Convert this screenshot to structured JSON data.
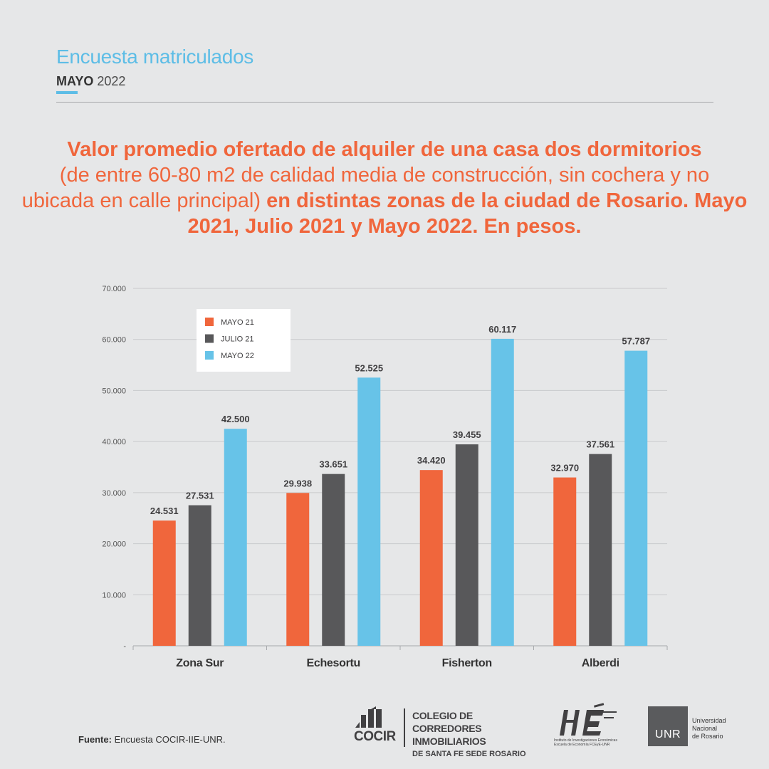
{
  "header": {
    "title": "Encuesta matriculados",
    "date_bold": "MAYO",
    "date_rest": "2022"
  },
  "headline": {
    "part1": "Valor promedio ofertado de alquiler de una casa dos dormitorios",
    "part2": "(de entre 60-80 m2 de calidad media de construcción, sin cochera y no ubicada en calle principal)",
    "part3": "en distintas zonas de la ciudad de Rosario. Mayo 2021, Julio 2021 y Mayo 2022. En pesos."
  },
  "chart_data": {
    "type": "bar",
    "categories": [
      "Zona Sur",
      "Echesortu",
      "Fisherton",
      "Alberdi"
    ],
    "series": [
      {
        "name": "MAYO 21",
        "color": "#f0663c",
        "values": [
          24531,
          29938,
          34420,
          32970
        ],
        "labels": [
          "24.531",
          "29.938",
          "34.420",
          "32.970"
        ]
      },
      {
        "name": "JULIO 21",
        "color": "#58585a",
        "values": [
          27531,
          33651,
          39455,
          37561
        ],
        "labels": [
          "27.531",
          "33.651",
          "39.455",
          "37.561"
        ]
      },
      {
        "name": "MAYO 22",
        "color": "#67c3e8",
        "values": [
          42500,
          52525,
          60117,
          57787
        ],
        "labels": [
          "42.500",
          "52.525",
          "60.117",
          "57.787"
        ]
      }
    ],
    "yticks": [
      "-",
      "10.000",
      "20.000",
      "30.000",
      "40.000",
      "50.000",
      "60.000",
      "70.000"
    ],
    "ytick_values": [
      0,
      10000,
      20000,
      30000,
      40000,
      50000,
      60000,
      70000
    ],
    "ylim": [
      0,
      70000
    ],
    "grid": true,
    "legend_position": "top-left"
  },
  "footer": {
    "source_label": "Fuente:",
    "source_text": "Encuesta COCIR-IIE-UNR."
  },
  "logos": {
    "cocir_word": "COCIR",
    "cocir_line1": "COLEGIO DE CORREDORES",
    "cocir_line2": "INMOBILIARIOS",
    "cocir_line3": "DE SANTA FE SEDE ROSARIO",
    "iie_line1": "Instituto de Investigaciones Económicas",
    "iie_line2": "Escuela de Economía FCEyE-UNR",
    "unr_box": "UNR",
    "unr_line1": "Universidad",
    "unr_line2": "Nacional",
    "unr_line3": "de Rosario"
  }
}
